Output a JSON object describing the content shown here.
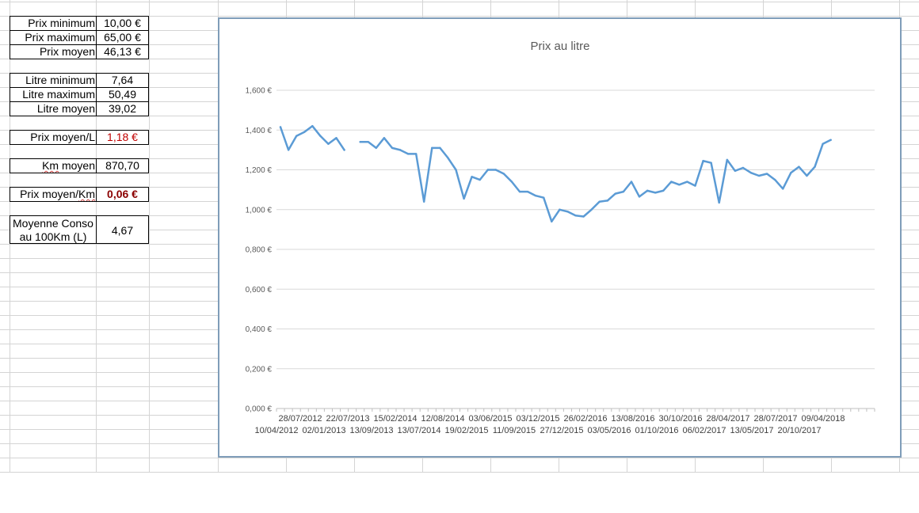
{
  "summary": {
    "prix_minimum": {
      "label": "Prix minimum",
      "value": "10,00 €"
    },
    "prix_maximum": {
      "label": "Prix maximum",
      "value": "65,00 €"
    },
    "prix_moyen": {
      "label": "Prix moyen",
      "value": "46,13 €"
    },
    "litre_minimum": {
      "label": "Litre minimum",
      "value": "7,64"
    },
    "litre_maximum": {
      "label": "Litre maximum",
      "value": "50,49"
    },
    "litre_moyen": {
      "label": "Litre moyen",
      "value": "39,02"
    },
    "prix_moyen_litre": {
      "label": "Prix moyen/L",
      "value": "1,18 €"
    },
    "km_moyen": {
      "label_prefix": "Km",
      "label_rest": " moyen",
      "value": "870,70"
    },
    "prix_moyen_km": {
      "label_prefix": "Prix moyen/",
      "label_squiggle": "Km",
      "value": "0,06 €"
    },
    "moyenne_conso": {
      "label": "Moyenne Conso au 100Km (L)",
      "value": "4,67"
    }
  },
  "colors": {
    "line": "#5b9bd5",
    "gridline": "#d9d9d9",
    "red_value": "#c00000",
    "dark_red_value": "#8b0000"
  },
  "chart_data": {
    "type": "line",
    "title": "Prix au litre",
    "xlabel": "",
    "ylabel": "",
    "ylim": [
      0,
      1.6
    ],
    "yticks": [
      "0,000 €",
      "0,200 €",
      "0,400 €",
      "0,600 €",
      "0,800 €",
      "1,000 €",
      "1,200 €",
      "1,400 €",
      "1,600 €"
    ],
    "xtick_labels_row1": [
      "28/07/2012",
      "22/07/2013",
      "15/02/2014",
      "12/08/2014",
      "03/06/2015",
      "03/12/2015",
      "26/02/2016",
      "13/08/2016",
      "30/10/2016",
      "28/04/2017",
      "28/07/2017",
      "09/04/2018"
    ],
    "xtick_labels_row2": [
      "10/04/2012",
      "02/01/2013",
      "13/09/2013",
      "13/07/2014",
      "19/02/2015",
      "11/09/2015",
      "27/12/2015",
      "03/05/2016",
      "01/10/2016",
      "06/02/2017",
      "13/05/2017",
      "20/10/2017"
    ],
    "series": [
      {
        "values": [
          1.415,
          1.3,
          1.37,
          1.39,
          1.42,
          1.37,
          1.33,
          1.36,
          1.3,
          null,
          1.34,
          1.34,
          1.31,
          1.36,
          1.31,
          1.3,
          1.28,
          1.28,
          1.04,
          1.31,
          1.31,
          1.26,
          1.2,
          1.055,
          1.165,
          1.15,
          1.2,
          1.2,
          1.18,
          1.14,
          1.09,
          1.09,
          1.07,
          1.06,
          0.94,
          1.0,
          0.99,
          0.97,
          0.965,
          1.0,
          1.04,
          1.045,
          1.08,
          1.09,
          1.14,
          1.065,
          1.095,
          1.085,
          1.095,
          1.14,
          1.125,
          1.14,
          1.12,
          1.245,
          1.235,
          1.035,
          1.25,
          1.195,
          1.21,
          1.185,
          1.17,
          1.18,
          1.15,
          1.105,
          1.185,
          1.215,
          1.17,
          1.215,
          1.33,
          1.35
        ]
      }
    ],
    "grid": true,
    "legend": "none"
  }
}
